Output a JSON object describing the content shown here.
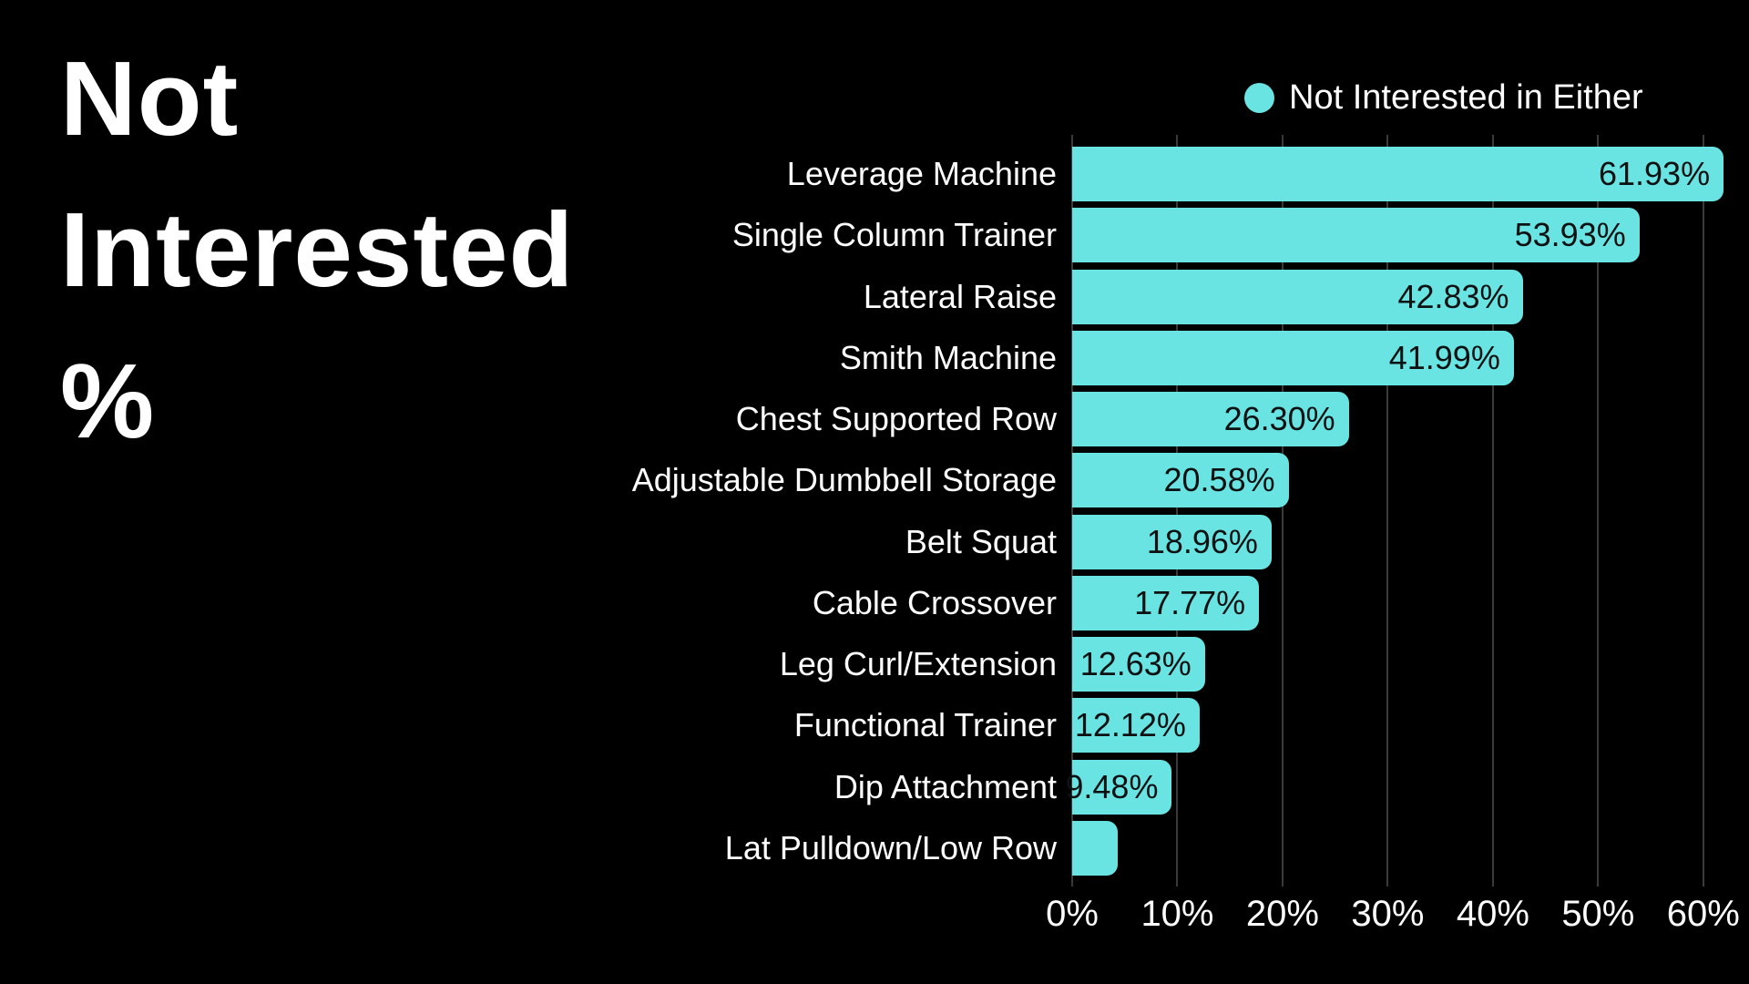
{
  "title": "Not Interested %",
  "legend": {
    "label": "Not Interested in Either",
    "marker_color": "#6ae4e2"
  },
  "colors": {
    "background": "#000000",
    "bar": "#6ae4e2",
    "bar_value_text": "#0e1111",
    "gridline": "#3a3a3a",
    "text": "#ffffff"
  },
  "chart_data": {
    "type": "bar",
    "orientation": "horizontal",
    "title": "Not Interested %",
    "legend_entries": [
      "Not Interested in Either"
    ],
    "legend_position": "top-right",
    "grid": true,
    "xlabel": "",
    "ylabel": "",
    "xlim": [
      0,
      62.9
    ],
    "x_tick_values": [
      0,
      10,
      20,
      30,
      40,
      50,
      60
    ],
    "x_tick_labels": [
      "0%",
      "10%",
      "20%",
      "30%",
      "40%",
      "50%",
      "60%"
    ],
    "categories": [
      "Leverage Machine",
      "Single Column Trainer",
      "Lateral Raise",
      "Smith Machine",
      "Chest Supported Row",
      "Adjustable Dumbbell Storage",
      "Belt Squat",
      "Cable Crossover",
      "Leg Curl/Extension",
      "Functional Trainer",
      "Dip Attachment",
      "Lat Pulldown/Low Row"
    ],
    "values": [
      61.93,
      53.93,
      42.83,
      41.99,
      26.3,
      20.58,
      18.96,
      17.77,
      12.63,
      12.12,
      9.48,
      4.3
    ],
    "value_labels": [
      "61.93%",
      "53.93%",
      "42.83%",
      "41.99%",
      "26.30%",
      "20.58%",
      "18.96%",
      "17.77%",
      "12.63%",
      "12.12%",
      "9.48%",
      ""
    ]
  }
}
